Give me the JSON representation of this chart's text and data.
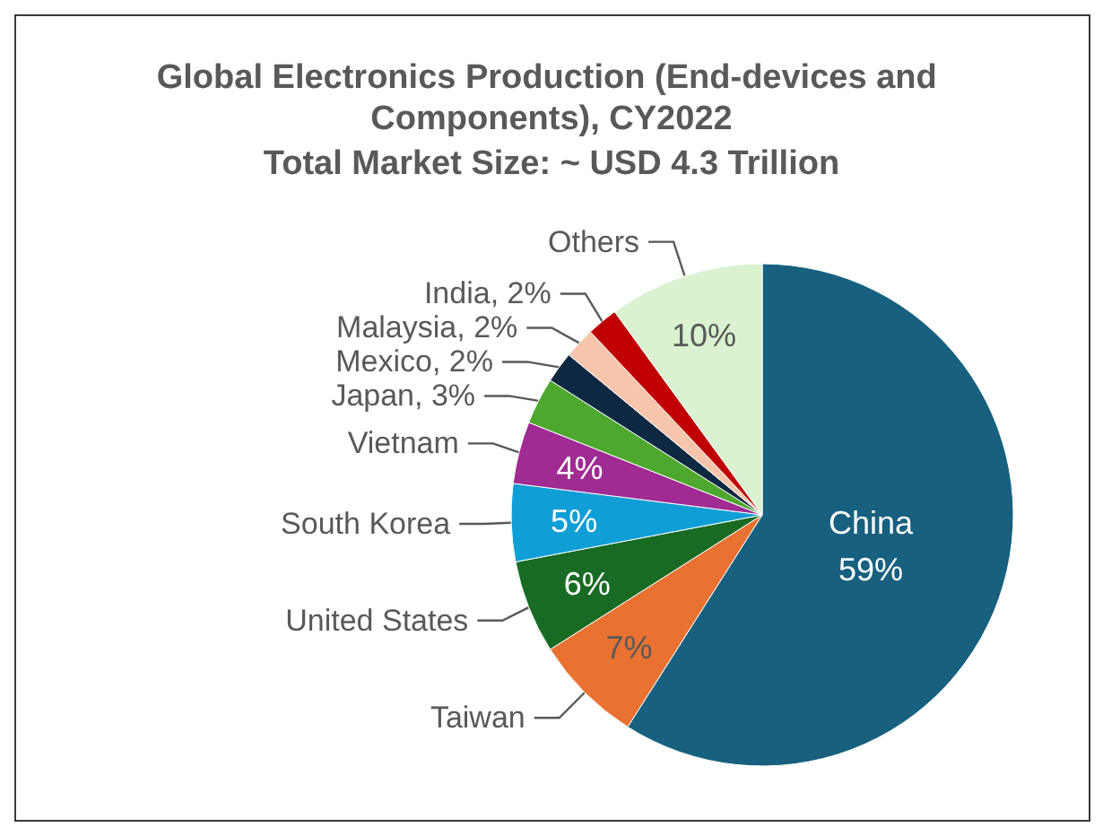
{
  "chart_data": {
    "type": "pie",
    "title": "Global Electronics Production (End-devices and Components), CY2022",
    "subtitle": "Total Market Size: ~ USD 4.3 Trillion",
    "categories": [
      "China",
      "Taiwan",
      "United States",
      "South Korea",
      "Vietnam",
      "Japan",
      "Mexico",
      "Malaysia",
      "India",
      "Others"
    ],
    "values": [
      59,
      7,
      6,
      5,
      4,
      3,
      2,
      2,
      2,
      10
    ],
    "colors": [
      "#17607f",
      "#e97132",
      "#196b24",
      "#0f9ed5",
      "#a02b93",
      "#4ea72e",
      "#0e2841",
      "#f6c5ac",
      "#c00000",
      "#daf2d0"
    ],
    "value_labels": [
      "59%",
      "7%",
      "6%",
      "5%",
      "4%",
      ", 3%",
      ", 2%",
      ", 2%",
      ", 2%",
      "10%"
    ],
    "legend": false
  }
}
